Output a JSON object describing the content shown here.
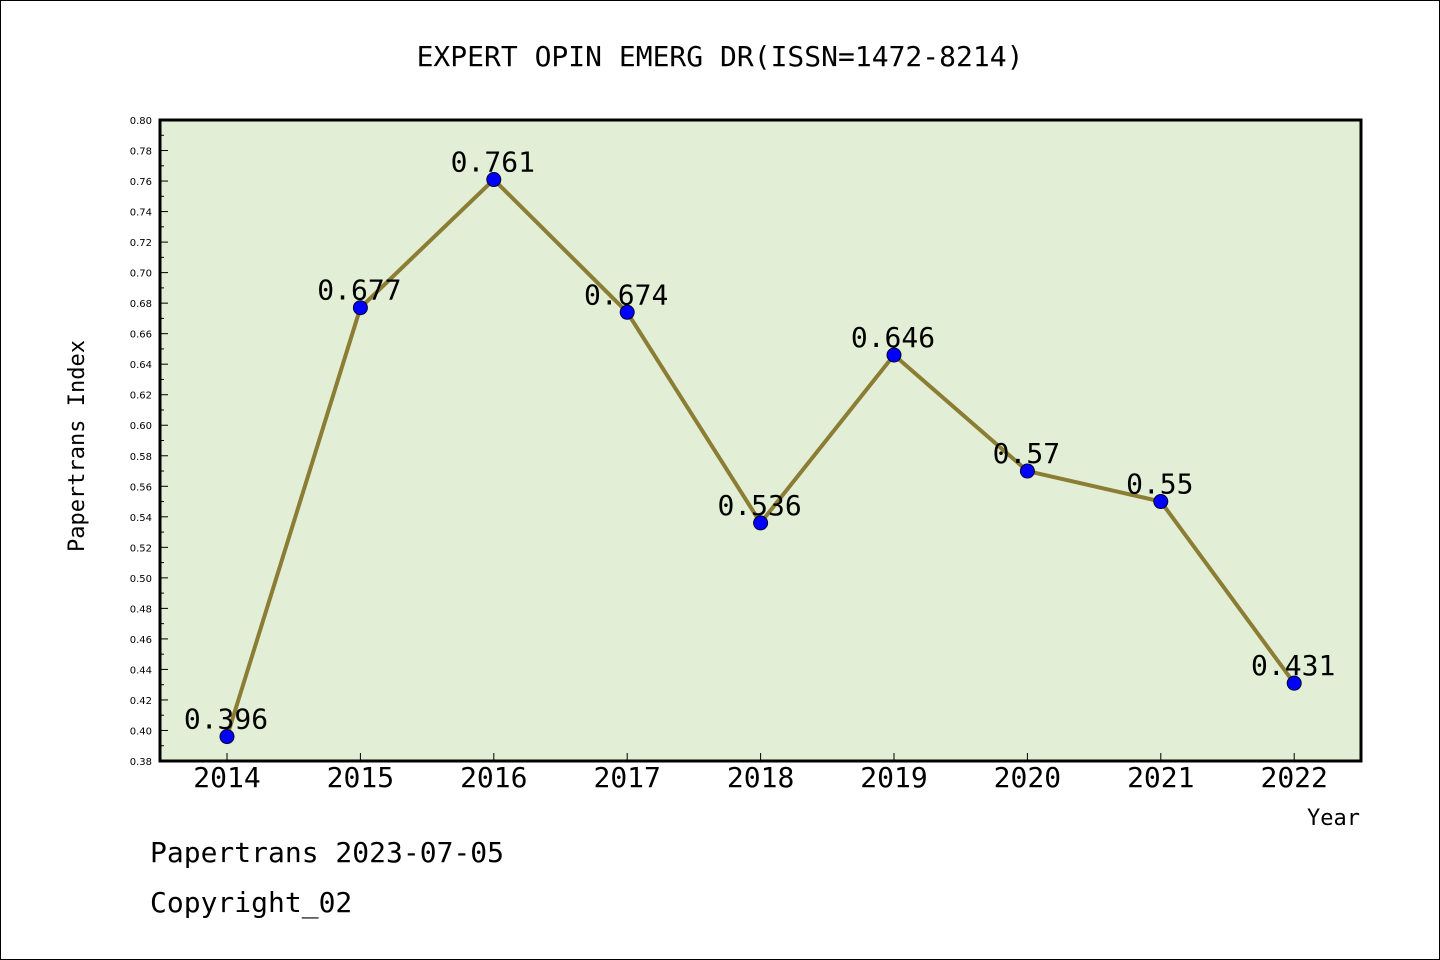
{
  "chart_data": {
    "type": "line",
    "title": "EXPERT OPIN EMERG DR(ISSN=1472-8214)",
    "xlabel": "Year",
    "ylabel": "Papertrans Index",
    "x": [
      "2014",
      "2015",
      "2016",
      "2017",
      "2018",
      "2019",
      "2020",
      "2021",
      "2022"
    ],
    "series": [
      {
        "values": [
          0.396,
          0.677,
          0.761,
          0.674,
          0.536,
          0.646,
          0.57,
          0.55,
          0.431
        ],
        "labels": [
          "0.396",
          "0.677",
          "0.761",
          "0.674",
          "0.536",
          "0.646",
          "0.57",
          "0.55",
          "0.431"
        ]
      }
    ],
    "ylim": [
      0.38,
      0.8
    ],
    "yticks": [
      "0.38",
      "0.40",
      "0.42",
      "0.44",
      "0.46",
      "0.48",
      "0.50",
      "0.52",
      "0.54",
      "0.56",
      "0.58",
      "0.60",
      "0.62",
      "0.64",
      "0.66",
      "0.68",
      "0.70",
      "0.72",
      "0.74",
      "0.76",
      "0.78",
      "0.80"
    ],
    "colors": {
      "plot_bg": "#e2efd6",
      "line": "#8b7d33",
      "marker": "#0000ff"
    },
    "grid": false,
    "legend": "none"
  },
  "footer": {
    "line1": "Papertrans 2023-07-05",
    "line2": "Copyright_02"
  }
}
